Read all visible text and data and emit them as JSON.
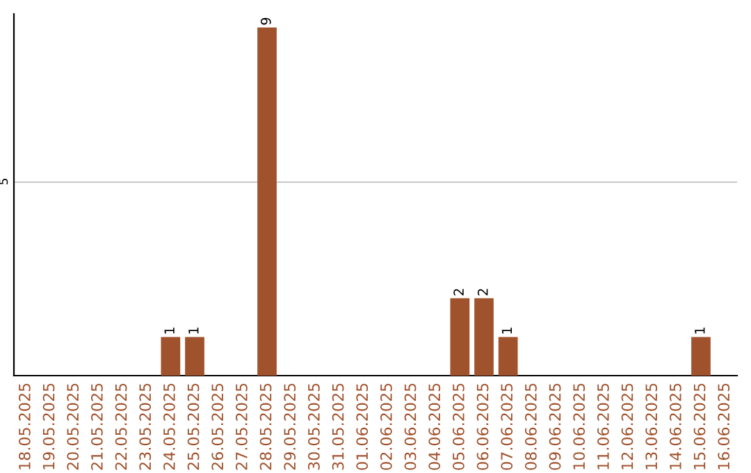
{
  "chart_data": {
    "type": "bar",
    "categories": [
      "18.05.2025",
      "19.05.2025",
      "20.05.2025",
      "21.05.2025",
      "22.05.2025",
      "23.05.2025",
      "24.05.2025",
      "25.05.2025",
      "26.05.2025",
      "27.05.2025",
      "28.05.2025",
      "29.05.2025",
      "30.05.2025",
      "31.05.2025",
      "01.06.2025",
      "02.06.2025",
      "03.06.2025",
      "04.06.2025",
      "05.06.2025",
      "06.06.2025",
      "07.06.2025",
      "08.06.2025",
      "09.06.2025",
      "10.06.2025",
      "11.06.2025",
      "12.06.2025",
      "13.06.2025",
      "14.06.2025",
      "15.06.2025",
      "16.06.2025"
    ],
    "values": [
      0,
      0,
      0,
      0,
      0,
      0,
      1,
      1,
      0,
      0,
      9,
      0,
      0,
      0,
      0,
      0,
      0,
      0,
      2,
      2,
      1,
      0,
      0,
      0,
      0,
      0,
      0,
      0,
      1,
      0
    ],
    "value_labels": [
      null,
      null,
      null,
      null,
      null,
      null,
      "1",
      "1",
      null,
      null,
      "9",
      null,
      null,
      null,
      null,
      null,
      null,
      null,
      "2",
      "2",
      "1",
      null,
      null,
      null,
      null,
      null,
      null,
      null,
      "1",
      null
    ],
    "color": "#a0522d",
    "ylim": [
      0,
      9.35
    ],
    "yticks": [
      5
    ],
    "grid": "y"
  }
}
